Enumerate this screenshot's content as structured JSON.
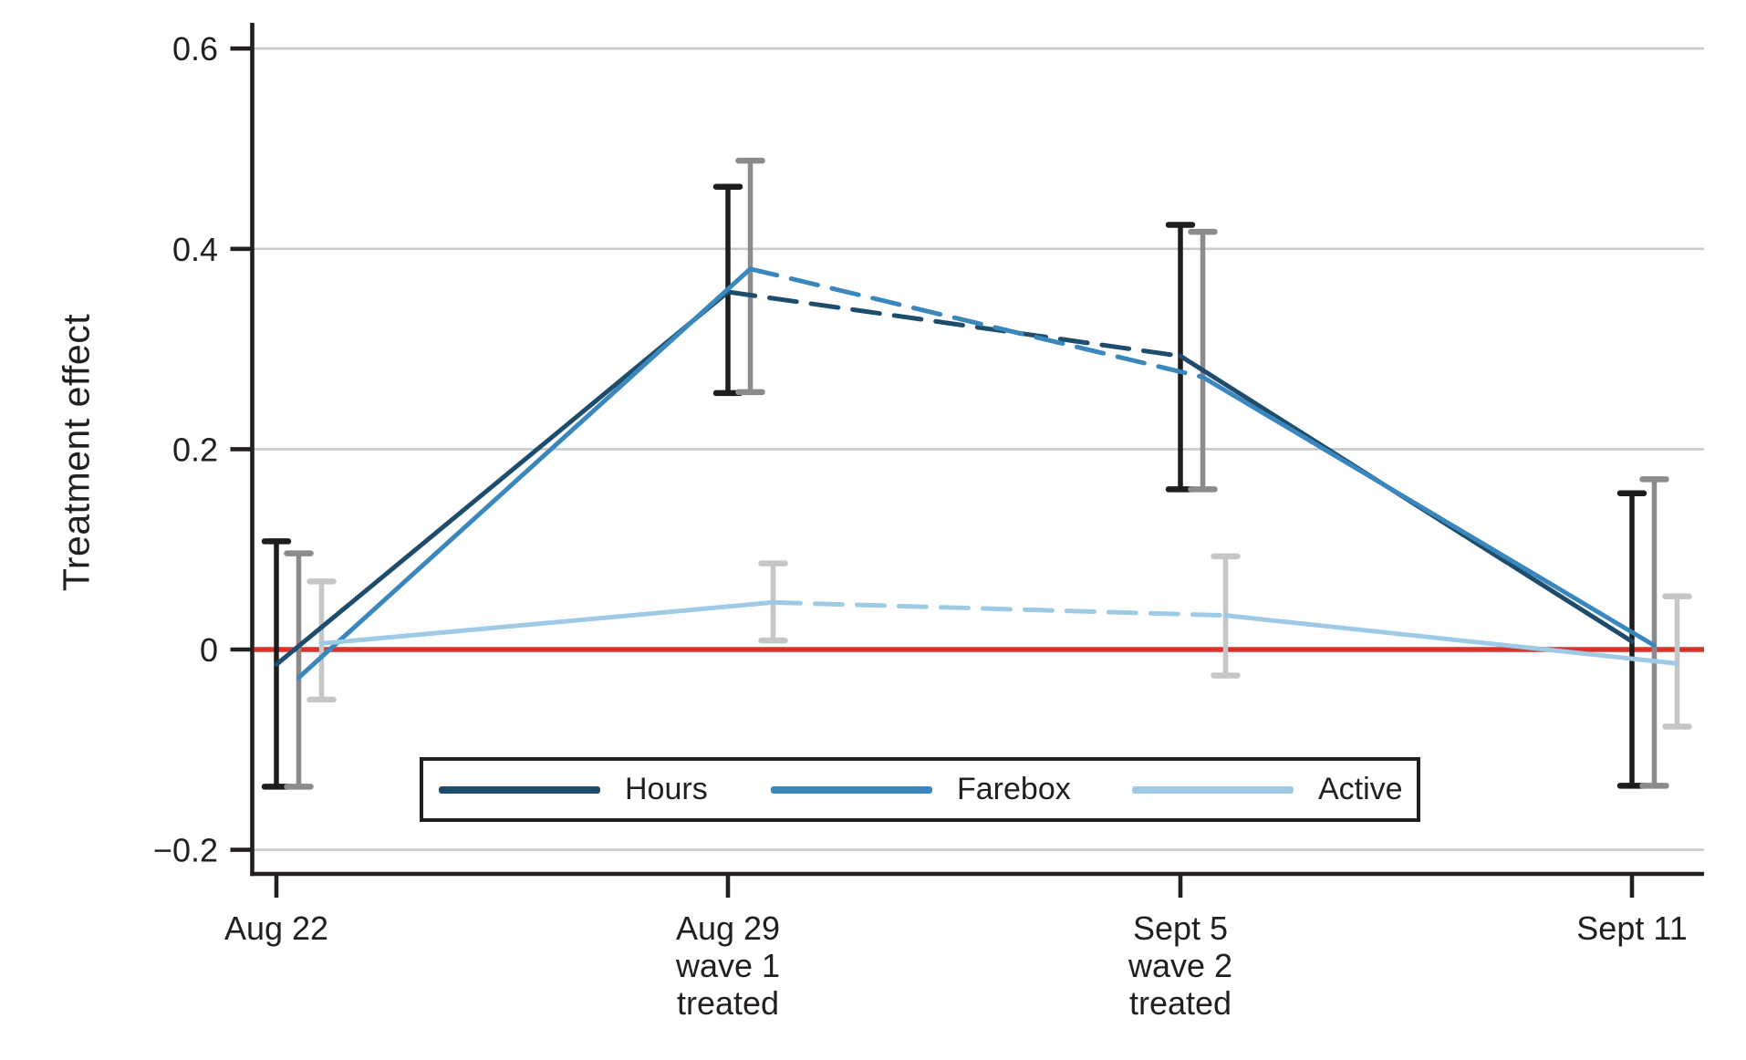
{
  "chart_data": {
    "type": "line",
    "title": "",
    "xlabel": "",
    "ylabel": "Treatment effect",
    "ylim": [
      -0.28,
      0.66
    ],
    "grid": "horizontal",
    "gridline_color": "#c9c9c9",
    "axis_color": "#231f20",
    "text_color": "#231f20",
    "zero_line": {
      "value": 0,
      "color": "#d7352b"
    },
    "yticks": [
      {
        "value": 0.6,
        "label": "0.6"
      },
      {
        "value": 0.4,
        "label": "0.4"
      },
      {
        "value": 0.2,
        "label": "0.2"
      },
      {
        "value": 0,
        "label": "0"
      },
      {
        "value": -0.2,
        "label": "−0.2"
      }
    ],
    "categories": [
      {
        "lines": [
          "Aug 22"
        ]
      },
      {
        "lines": [
          "Aug 29",
          "wave 1",
          "treated"
        ]
      },
      {
        "lines": [
          "Sept 5",
          "wave 2",
          "treated"
        ]
      },
      {
        "lines": [
          "Sept 11"
        ]
      }
    ],
    "series": [
      {
        "name": "Hours",
        "color": "#1e4c6d",
        "errorbar_color": "#1d1d1b",
        "values": [
          -0.015,
          0.357,
          0.293,
          0.008
        ],
        "ci_low": [
          -0.137,
          0.256,
          0.16,
          -0.136
        ],
        "ci_high": [
          0.108,
          0.462,
          0.424,
          0.156
        ],
        "segment_styles": [
          "solid",
          "dashed",
          "solid"
        ]
      },
      {
        "name": "Farebox",
        "color": "#3a87bd",
        "errorbar_color": "#8a8b8d",
        "values": [
          -0.028,
          0.38,
          0.272,
          0.004
        ],
        "ci_low": [
          -0.137,
          0.257,
          0.16,
          -0.136
        ],
        "ci_high": [
          0.096,
          0.488,
          0.417,
          0.17
        ],
        "segment_styles": [
          "solid",
          "dashed",
          "solid"
        ]
      },
      {
        "name": "Active",
        "color": "#9ecae6",
        "errorbar_color": "#c5c6c8",
        "values": [
          0.006,
          0.047,
          0.034,
          -0.014
        ],
        "ci_low": [
          -0.05,
          0.009,
          -0.026,
          -0.077
        ],
        "ci_high": [
          0.068,
          0.086,
          0.093,
          0.053
        ],
        "segment_styles": [
          "solid",
          "dashed",
          "solid"
        ]
      }
    ],
    "legend": {
      "position": "bottom-inside",
      "entries": [
        "Hours",
        "Farebox",
        "Active"
      ]
    }
  }
}
